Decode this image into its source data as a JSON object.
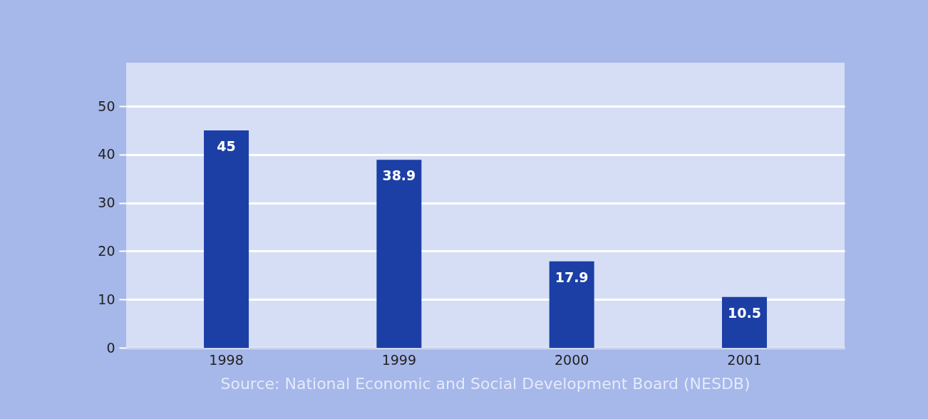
{
  "chart_data": {
    "type": "bar",
    "categories": [
      "1998",
      "1999",
      "2000",
      "2001"
    ],
    "values": [
      45,
      38.9,
      17.9,
      10.5
    ],
    "color": "#1c3fa6",
    "ylim": [
      0,
      59
    ],
    "yticks": [
      0,
      10,
      20,
      30,
      40,
      50
    ],
    "grid": "y",
    "data_labels": true,
    "annotations": [
      "Source: National Economic and Social Development Board (NESDB)"
    ]
  }
}
